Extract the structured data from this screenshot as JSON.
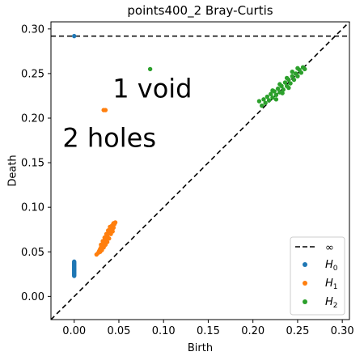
{
  "chart_data": {
    "type": "scatter",
    "title": "points400_2 Bray-Curtis",
    "xlabel": "Birth",
    "ylabel": "Death",
    "xlim": [
      -0.026,
      0.308
    ],
    "ylim": [
      -0.026,
      0.308
    ],
    "x_ticks": [
      0.0,
      0.05,
      0.1,
      0.15,
      0.2,
      0.25,
      0.3
    ],
    "x_tick_labels": [
      "0.00",
      "0.05",
      "0.10",
      "0.15",
      "0.20",
      "0.25",
      "0.30"
    ],
    "y_ticks": [
      0.0,
      0.05,
      0.1,
      0.15,
      0.2,
      0.25,
      0.3
    ],
    "y_tick_labels": [
      "0.00",
      "0.05",
      "0.10",
      "0.15",
      "0.20",
      "0.25",
      "0.30"
    ],
    "grid": false,
    "legend_placement": "bottom-right",
    "infinity_line": {
      "label": "∞",
      "y": 0.292,
      "color": "#000000"
    },
    "diagonal": {
      "color": "#000000"
    },
    "annotations": [
      {
        "text": "1 void",
        "x": 0.043,
        "y": 0.223
      },
      {
        "text": "2 holes",
        "x": -0.013,
        "y": 0.168
      }
    ],
    "series": [
      {
        "name": "H",
        "subscript": "0",
        "color": "#1f77b4",
        "points": [
          [
            0.0,
            0.292
          ],
          [
            0.0,
            0.023
          ],
          [
            0.0,
            0.024
          ],
          [
            0.0,
            0.025
          ],
          [
            0.0,
            0.026
          ],
          [
            0.0,
            0.027
          ],
          [
            0.0,
            0.028
          ],
          [
            0.0,
            0.029
          ],
          [
            0.0,
            0.03
          ],
          [
            0.0,
            0.031
          ],
          [
            0.0,
            0.032
          ],
          [
            0.0,
            0.033
          ],
          [
            0.0,
            0.034
          ],
          [
            0.0,
            0.035
          ],
          [
            0.0,
            0.036
          ],
          [
            0.0,
            0.037
          ],
          [
            0.0,
            0.038
          ],
          [
            0.0,
            0.039
          ]
        ]
      },
      {
        "name": "H",
        "subscript": "1",
        "color": "#ff7f0e",
        "points": [
          [
            0.033,
            0.209
          ],
          [
            0.035,
            0.209
          ],
          [
            0.025,
            0.047
          ],
          [
            0.027,
            0.049
          ],
          [
            0.028,
            0.051
          ],
          [
            0.029,
            0.053
          ],
          [
            0.03,
            0.055
          ],
          [
            0.031,
            0.056
          ],
          [
            0.03,
            0.058
          ],
          [
            0.032,
            0.059
          ],
          [
            0.033,
            0.06
          ],
          [
            0.032,
            0.062
          ],
          [
            0.034,
            0.063
          ],
          [
            0.035,
            0.064
          ],
          [
            0.034,
            0.066
          ],
          [
            0.036,
            0.067
          ],
          [
            0.037,
            0.068
          ],
          [
            0.036,
            0.07
          ],
          [
            0.038,
            0.071
          ],
          [
            0.039,
            0.072
          ],
          [
            0.038,
            0.074
          ],
          [
            0.04,
            0.075
          ],
          [
            0.041,
            0.076
          ],
          [
            0.04,
            0.078
          ],
          [
            0.042,
            0.079
          ],
          [
            0.043,
            0.08
          ],
          [
            0.044,
            0.082
          ],
          [
            0.046,
            0.083
          ],
          [
            0.029,
            0.05
          ],
          [
            0.031,
            0.052
          ],
          [
            0.033,
            0.055
          ],
          [
            0.035,
            0.058
          ],
          [
            0.037,
            0.061
          ],
          [
            0.039,
            0.065
          ],
          [
            0.041,
            0.07
          ],
          [
            0.043,
            0.073
          ],
          [
            0.044,
            0.077
          ],
          [
            0.045,
            0.081
          ]
        ]
      },
      {
        "name": "H",
        "subscript": "2",
        "color": "#2ca02c",
        "points": [
          [
            0.085,
            0.255
          ],
          [
            0.207,
            0.219
          ],
          [
            0.21,
            0.214
          ],
          [
            0.212,
            0.221
          ],
          [
            0.214,
            0.217
          ],
          [
            0.216,
            0.224
          ],
          [
            0.218,
            0.22
          ],
          [
            0.22,
            0.227
          ],
          [
            0.222,
            0.223
          ],
          [
            0.224,
            0.23
          ],
          [
            0.226,
            0.226
          ],
          [
            0.228,
            0.233
          ],
          [
            0.23,
            0.229
          ],
          [
            0.232,
            0.236
          ],
          [
            0.234,
            0.232
          ],
          [
            0.236,
            0.24
          ],
          [
            0.238,
            0.236
          ],
          [
            0.24,
            0.243
          ],
          [
            0.242,
            0.239
          ],
          [
            0.244,
            0.247
          ],
          [
            0.246,
            0.243
          ],
          [
            0.248,
            0.25
          ],
          [
            0.25,
            0.247
          ],
          [
            0.252,
            0.254
          ],
          [
            0.254,
            0.251
          ],
          [
            0.256,
            0.257
          ],
          [
            0.258,
            0.255
          ],
          [
            0.222,
            0.231
          ],
          [
            0.23,
            0.238
          ],
          [
            0.238,
            0.245
          ],
          [
            0.244,
            0.252
          ],
          [
            0.25,
            0.256
          ],
          [
            0.226,
            0.221
          ],
          [
            0.233,
            0.228
          ],
          [
            0.24,
            0.234
          ]
        ]
      }
    ]
  }
}
